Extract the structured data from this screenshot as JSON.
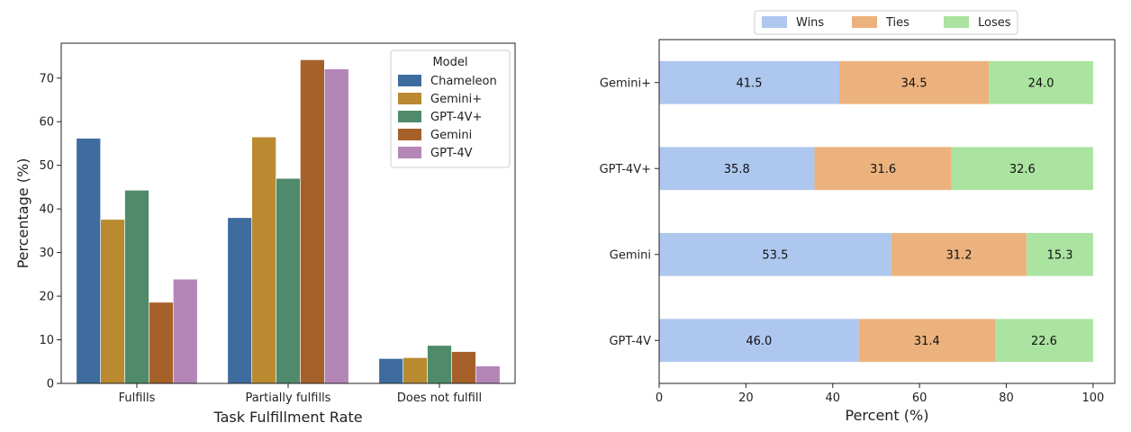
{
  "chart_data": [
    {
      "type": "bar",
      "xlabel": "Task Fulfillment Rate",
      "ylabel": "Percentage (%)",
      "ylim": [
        0,
        78
      ],
      "yticks": [
        0,
        10,
        20,
        30,
        40,
        50,
        60,
        70
      ],
      "categories": [
        "Fulfills",
        "Partially fulfills",
        "Does not fulfill"
      ],
      "legend": {
        "title": "Model",
        "placement": "top-right"
      },
      "series": [
        {
          "name": "Chameleon",
          "color": "#3f6c9f",
          "values": [
            56.2,
            38.0,
            5.7
          ]
        },
        {
          "name": "Gemini+",
          "color": "#b98a30",
          "values": [
            37.6,
            56.5,
            5.9
          ]
        },
        {
          "name": "GPT-4V+",
          "color": "#4f8b6a",
          "values": [
            44.3,
            47.0,
            8.7
          ]
        },
        {
          "name": "Gemini",
          "color": "#a6612b",
          "values": [
            18.6,
            74.2,
            7.3
          ]
        },
        {
          "name": "GPT-4V",
          "color": "#b486b8",
          "values": [
            23.9,
            72.1,
            4.0
          ]
        }
      ]
    },
    {
      "type": "bar",
      "orientation": "horizontal",
      "stacked": true,
      "xlabel": "Percent (%)",
      "ylabel": "",
      "xlim": [
        0,
        105
      ],
      "xticks": [
        0,
        20,
        40,
        60,
        80,
        100
      ],
      "categories": [
        "Gemini+",
        "GPT-4V+",
        "Gemini",
        "GPT-4V"
      ],
      "legend": {
        "placement": "top-center"
      },
      "series": [
        {
          "name": "Wins",
          "color": "#aec7ef",
          "values": [
            41.5,
            35.8,
            53.5,
            46.0
          ]
        },
        {
          "name": "Ties",
          "color": "#ecb27e",
          "values": [
            34.5,
            31.6,
            31.2,
            31.4
          ]
        },
        {
          "name": "Loses",
          "color": "#abe3a0",
          "values": [
            24.0,
            32.6,
            15.3,
            22.6
          ]
        }
      ]
    }
  ]
}
